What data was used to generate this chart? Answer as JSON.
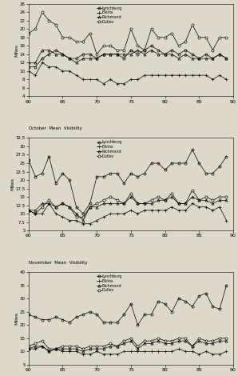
{
  "background_color": "#ddd8c8",
  "x_ticks": [
    60,
    65,
    70,
    75,
    80,
    85,
    90
  ],
  "x_range": [
    60,
    90
  ],
  "series_names": [
    "Lynchburg",
    "Elkins",
    "Richmond",
    "Dulles"
  ],
  "panels": [
    {
      "ylabel": "Miles",
      "ylim": [
        4,
        26
      ],
      "yticks": [
        4,
        6,
        8,
        10,
        12,
        14,
        16,
        18,
        20,
        22,
        24,
        26
      ],
      "title_above": "",
      "title_below": "October  Mean  Visibility",
      "data": {
        "Lynchburg": [
          11,
          11,
          13,
          14,
          15,
          14,
          13,
          13,
          14,
          14,
          13,
          14,
          14,
          14,
          13,
          15,
          14,
          15,
          16,
          15,
          14,
          15,
          14,
          15,
          14,
          13,
          14,
          13,
          14,
          13
        ],
        "Elkins": [
          10,
          9,
          12,
          11,
          11,
          10,
          10,
          9,
          8,
          8,
          8,
          7,
          8,
          7,
          7,
          8,
          8,
          9,
          9,
          9,
          9,
          9,
          9,
          9,
          9,
          9,
          9,
          8,
          9,
          8
        ],
        "Richmond": [
          12,
          12,
          15,
          15,
          14,
          14,
          13,
          12,
          13,
          13,
          13,
          14,
          14,
          14,
          14,
          14,
          15,
          14,
          15,
          14,
          14,
          14,
          13,
          14,
          13,
          13,
          13,
          13,
          14,
          13
        ],
        "Dulles": [
          19,
          20,
          24,
          22,
          21,
          18,
          18,
          17,
          17,
          19,
          14,
          16,
          16,
          15,
          15,
          20,
          16,
          15,
          20,
          18,
          18,
          19,
          16,
          17,
          21,
          18,
          18,
          15,
          18,
          18
        ]
      }
    },
    {
      "ylabel": "Miles",
      "ylim": [
        5,
        32.5
      ],
      "yticks": [
        5,
        7.5,
        10,
        12.5,
        15,
        17.5,
        20,
        22.5,
        25,
        27.5,
        30,
        32.5
      ],
      "title_above": "October  Mean  Visibility",
      "title_below": "November  Mean  Visibility",
      "data": {
        "Lynchburg": [
          26,
          21,
          22,
          27,
          19,
          22,
          20,
          12,
          10,
          13,
          21,
          21,
          22,
          22,
          19,
          22,
          21,
          22,
          25,
          25,
          23,
          25,
          25,
          25,
          29,
          25,
          22,
          22,
          24,
          27
        ],
        "Elkins": [
          11,
          10,
          10,
          13,
          10,
          9,
          8,
          8,
          7,
          7,
          8,
          9,
          10,
          10,
          10,
          11,
          10,
          11,
          11,
          11,
          11,
          12,
          11,
          11,
          13,
          12,
          12,
          11,
          12,
          8
        ],
        "Richmond": [
          11,
          11,
          13,
          13,
          12,
          13,
          12,
          10,
          8,
          12,
          12,
          13,
          13,
          13,
          13,
          15,
          13,
          13,
          13,
          14,
          14,
          15,
          13,
          13,
          15,
          14,
          14,
          13,
          14,
          14
        ],
        "Dulles": [
          11,
          10,
          12,
          14,
          12,
          13,
          12,
          9,
          9,
          12,
          13,
          14,
          15,
          14,
          13,
          16,
          13,
          13,
          14,
          15,
          14,
          16,
          13,
          13,
          17,
          14,
          15,
          14,
          15,
          15
        ]
      }
    },
    {
      "ylabel": "Miles",
      "ylim": [
        5,
        40
      ],
      "yticks": [
        5,
        10,
        15,
        20,
        25,
        30,
        35,
        40
      ],
      "title_above": "November  Mean  Visibility",
      "title_below": "",
      "data": {
        "Lynchburg": [
          24,
          23,
          22,
          22,
          23,
          22,
          21,
          23,
          24,
          25,
          24,
          21,
          21,
          21,
          24,
          28,
          20,
          24,
          24,
          29,
          28,
          25,
          30,
          29,
          27,
          31,
          32,
          27,
          26,
          35
        ],
        "Elkins": [
          11,
          11,
          12,
          10,
          11,
          10,
          10,
          10,
          9,
          9,
          10,
          9,
          9,
          9,
          10,
          10,
          10,
          10,
          10,
          10,
          10,
          10,
          11,
          10,
          10,
          9,
          10,
          9,
          9,
          10
        ],
        "Richmond": [
          11,
          12,
          12,
          10,
          11,
          11,
          11,
          11,
          10,
          11,
          11,
          11,
          12,
          12,
          13,
          14,
          11,
          13,
          13,
          14,
          13,
          13,
          14,
          14,
          12,
          14,
          13,
          13,
          14,
          14
        ],
        "Dulles": [
          12,
          13,
          14,
          11,
          11,
          12,
          12,
          12,
          11,
          12,
          12,
          12,
          13,
          12,
          14,
          15,
          12,
          14,
          14,
          15,
          14,
          14,
          15,
          15,
          12,
          15,
          14,
          14,
          15,
          15
        ]
      }
    }
  ]
}
